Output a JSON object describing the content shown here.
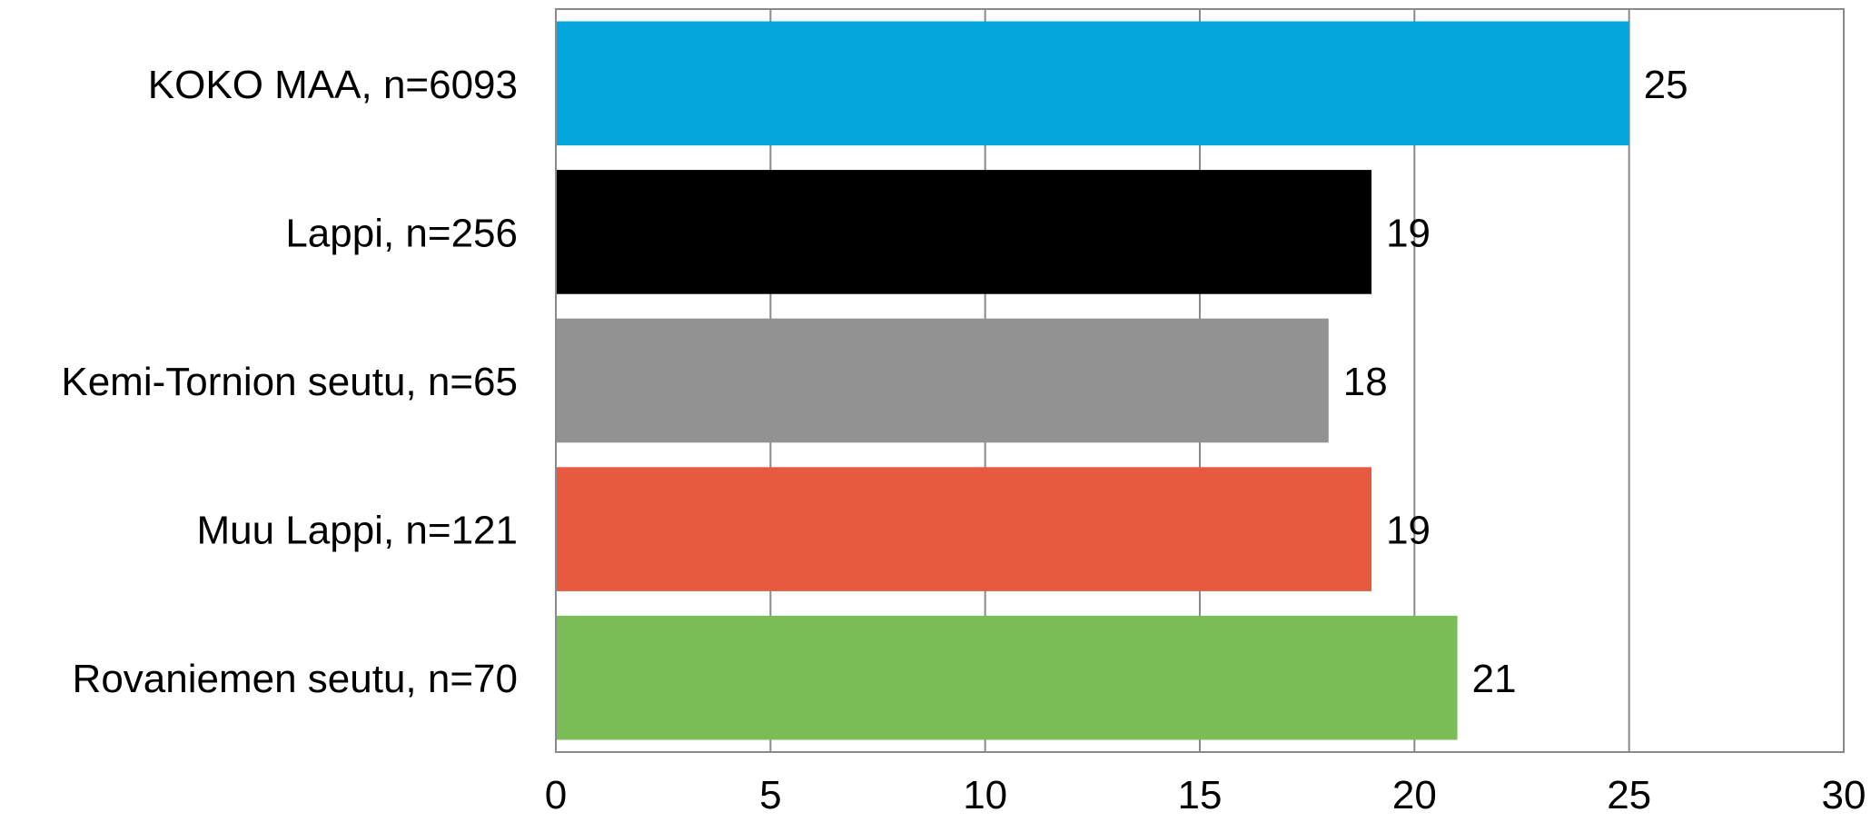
{
  "chart_data": {
    "type": "bar",
    "orientation": "horizontal",
    "categories": [
      "KOKO MAA, n=6093",
      "Lappi, n=256",
      "Kemi-Tornion seutu, n=65",
      "Muu Lappi, n=121",
      "Rovaniemen seutu, n=70"
    ],
    "values": [
      25,
      19,
      18,
      19,
      21
    ],
    "colors": [
      "#05a6dc",
      "#000000",
      "#929292",
      "#e85a40",
      "#7abd56"
    ],
    "xlim": [
      0,
      30
    ],
    "xticks": [
      "0",
      "5",
      "10",
      "15",
      "20",
      "25",
      "30"
    ],
    "grid": true,
    "title": "",
    "xlabel": "",
    "ylabel": ""
  }
}
